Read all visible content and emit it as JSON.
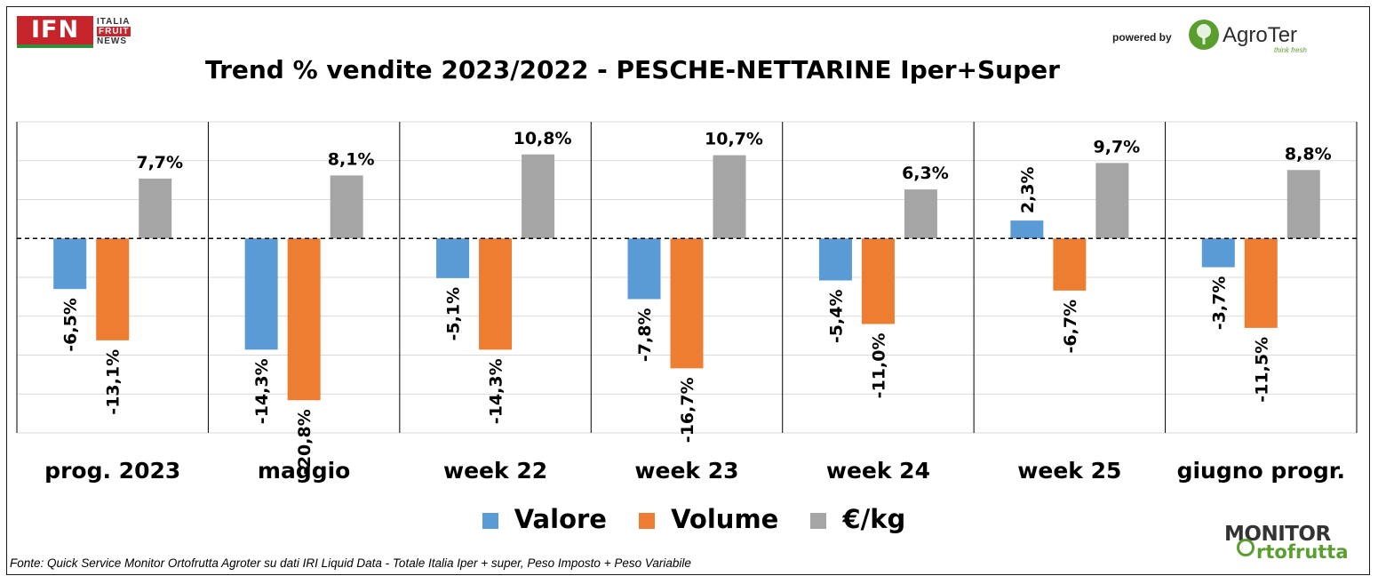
{
  "header": {
    "ifn_logo": {
      "mark": "IFN",
      "line1": "ITALIA",
      "line2": "FRUIT",
      "line3": "NEWS"
    },
    "powered_by": "powered by",
    "agroter_logo": {
      "name": "AgroTer",
      "tagline": "think fresh"
    }
  },
  "footer": {
    "source": "Fonte: Quick Service Monitor Ortofrutta Agroter su dati IRI Liquid Data - Totale Italia Iper + super, Peso Imposto + Peso Variabile",
    "monitor_logo": {
      "line1": "MONITOR",
      "line2": "rtofrutta"
    }
  },
  "colors": {
    "valore": "#5b9bd5",
    "volume": "#ed7d31",
    "eur_kg": "#a5a5a5",
    "ifn_red": "#c4242a",
    "brand_green": "#5a9e2f"
  },
  "chart_data": {
    "type": "bar",
    "title": "Trend % vendite 2023/2022 - PESCHE-NETTARINE Iper+Super",
    "categories": [
      "prog. 2023",
      "maggio",
      "week 22",
      "week 23",
      "week 24",
      "week 25",
      "giugno progr."
    ],
    "series": [
      {
        "name": "Valore",
        "values": [
          -6.5,
          -14.3,
          -5.1,
          -7.8,
          -5.4,
          2.3,
          -3.7
        ],
        "labels": [
          "-6,5%",
          "-14,3%",
          "-5,1%",
          "-7,8%",
          "-5,4%",
          "2,3%",
          "-3,7%"
        ]
      },
      {
        "name": "Volume",
        "values": [
          -13.1,
          -20.8,
          -14.3,
          -16.7,
          -11.0,
          -6.7,
          -11.5
        ],
        "labels": [
          "-13,1%",
          "-20,8%",
          "-14,3%",
          "-16,7%",
          "-11,0%",
          "-6,7%",
          "-11,5%"
        ]
      },
      {
        "name": "€/kg",
        "values": [
          7.7,
          8.1,
          10.8,
          10.7,
          6.3,
          9.7,
          8.8
        ],
        "labels": [
          "7,7%",
          "8,1%",
          "10,8%",
          "10,7%",
          "6,3%",
          "9,7%",
          "8,8%"
        ]
      }
    ],
    "ylim": [
      -25,
      15
    ],
    "grid": true,
    "legend": "bottom"
  }
}
